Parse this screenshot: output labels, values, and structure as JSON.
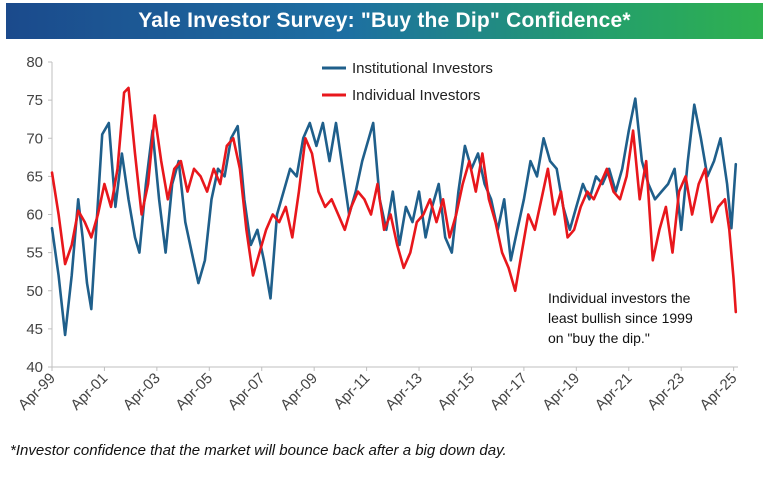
{
  "header": {
    "title": "Yale Investor Survey: \"Buy the Dip\" Confidence*"
  },
  "footnote": "*Investor confidence that the market will bounce back after a big down day.",
  "colors": {
    "institutional": "#1f5f8b",
    "individual": "#e8171c",
    "axis": "#bfbfbf"
  },
  "chart_data": {
    "type": "line",
    "title": "Yale Investor Survey: \"Buy the Dip\" Confidence*",
    "xlabel": "",
    "ylabel": "",
    "ylim": [
      40,
      80
    ],
    "yticks": [
      40,
      45,
      50,
      55,
      60,
      65,
      70,
      75,
      80
    ],
    "xlim": [
      "1999-04",
      "2025-06"
    ],
    "xticks": [
      "Apr-99",
      "Apr-01",
      "Apr-03",
      "Apr-05",
      "Apr-07",
      "Apr-09",
      "Apr-11",
      "Apr-13",
      "Apr-15",
      "Apr-17",
      "Apr-19",
      "Apr-21",
      "Apr-23",
      "Apr-25"
    ],
    "grid": false,
    "legend_position": "top-center",
    "series": [
      {
        "name": "Institutional Investors",
        "color": "#1f5f8b",
        "points": [
          [
            "1999-04",
            58.2
          ],
          [
            "1999-07",
            52
          ],
          [
            "1999-10",
            44.2
          ],
          [
            "2000-01",
            52
          ],
          [
            "2000-04",
            62
          ],
          [
            "2000-06",
            57
          ],
          [
            "2000-08",
            51
          ],
          [
            "2000-10",
            47.6
          ],
          [
            "2000-12",
            57
          ],
          [
            "2001-03",
            70.5
          ],
          [
            "2001-06",
            72
          ],
          [
            "2001-09",
            61
          ],
          [
            "2001-12",
            68
          ],
          [
            "2002-03",
            62
          ],
          [
            "2002-06",
            57
          ],
          [
            "2002-08",
            55
          ],
          [
            "2002-11",
            64
          ],
          [
            "2003-02",
            71
          ],
          [
            "2003-05",
            62
          ],
          [
            "2003-08",
            55
          ],
          [
            "2003-11",
            64
          ],
          [
            "2004-02",
            67
          ],
          [
            "2004-05",
            59
          ],
          [
            "2004-08",
            55
          ],
          [
            "2004-11",
            51
          ],
          [
            "2005-02",
            54
          ],
          [
            "2005-05",
            62
          ],
          [
            "2005-08",
            66
          ],
          [
            "2005-11",
            65
          ],
          [
            "2006-02",
            70
          ],
          [
            "2006-05",
            71.6
          ],
          [
            "2006-08",
            62
          ],
          [
            "2006-11",
            56
          ],
          [
            "2007-02",
            58
          ],
          [
            "2007-05",
            54
          ],
          [
            "2007-08",
            49
          ],
          [
            "2007-11",
            60
          ],
          [
            "2008-02",
            63
          ],
          [
            "2008-05",
            66
          ],
          [
            "2008-08",
            65
          ],
          [
            "2008-11",
            70
          ],
          [
            "2009-02",
            72
          ],
          [
            "2009-05",
            69
          ],
          [
            "2009-08",
            72
          ],
          [
            "2009-11",
            67
          ],
          [
            "2010-02",
            72
          ],
          [
            "2010-05",
            66
          ],
          [
            "2010-08",
            60
          ],
          [
            "2010-11",
            63
          ],
          [
            "2011-02",
            67
          ],
          [
            "2011-05",
            70
          ],
          [
            "2011-07",
            72
          ],
          [
            "2011-10",
            62
          ],
          [
            "2012-01",
            58
          ],
          [
            "2012-04",
            63
          ],
          [
            "2012-07",
            56
          ],
          [
            "2012-10",
            61
          ],
          [
            "2013-01",
            59
          ],
          [
            "2013-04",
            63
          ],
          [
            "2013-07",
            57
          ],
          [
            "2013-10",
            61
          ],
          [
            "2014-01",
            64
          ],
          [
            "2014-04",
            57
          ],
          [
            "2014-07",
            55
          ],
          [
            "2014-10",
            63
          ],
          [
            "2015-01",
            69
          ],
          [
            "2015-04",
            66
          ],
          [
            "2015-07",
            68
          ],
          [
            "2015-10",
            64
          ],
          [
            "2016-01",
            62
          ],
          [
            "2016-04",
            58
          ],
          [
            "2016-07",
            62
          ],
          [
            "2016-10",
            54
          ],
          [
            "2017-01",
            58
          ],
          [
            "2017-04",
            62
          ],
          [
            "2017-07",
            67
          ],
          [
            "2017-10",
            65
          ],
          [
            "2018-01",
            70
          ],
          [
            "2018-04",
            67
          ],
          [
            "2018-07",
            66
          ],
          [
            "2018-10",
            61
          ],
          [
            "2019-01",
            58
          ],
          [
            "2019-04",
            61
          ],
          [
            "2019-07",
            64
          ],
          [
            "2019-10",
            62
          ],
          [
            "2020-01",
            65
          ],
          [
            "2020-04",
            64
          ],
          [
            "2020-07",
            66
          ],
          [
            "2020-10",
            63
          ],
          [
            "2021-01",
            66
          ],
          [
            "2021-04",
            71
          ],
          [
            "2021-07",
            75.2
          ],
          [
            "2021-10",
            67
          ],
          [
            "2022-01",
            64
          ],
          [
            "2022-04",
            62
          ],
          [
            "2022-07",
            63
          ],
          [
            "2022-10",
            64
          ],
          [
            "2023-01",
            66
          ],
          [
            "2023-04",
            58
          ],
          [
            "2023-07",
            67
          ],
          [
            "2023-10",
            74.4
          ],
          [
            "2024-01",
            70
          ],
          [
            "2024-04",
            65
          ],
          [
            "2024-07",
            67
          ],
          [
            "2024-10",
            70
          ],
          [
            "2025-01",
            64
          ],
          [
            "2025-03",
            58.2
          ],
          [
            "2025-05",
            66.6
          ]
        ]
      },
      {
        "name": "Individual Investors",
        "color": "#e8171c",
        "points": [
          [
            "1999-04",
            65.5
          ],
          [
            "1999-07",
            60
          ],
          [
            "1999-10",
            53.5
          ],
          [
            "2000-01",
            56
          ],
          [
            "2000-04",
            60.5
          ],
          [
            "2000-07",
            59
          ],
          [
            "2000-10",
            57
          ],
          [
            "2001-01",
            60
          ],
          [
            "2001-04",
            64
          ],
          [
            "2001-07",
            61
          ],
          [
            "2001-10",
            66
          ],
          [
            "2002-01",
            76
          ],
          [
            "2002-03",
            76.6
          ],
          [
            "2002-06",
            68
          ],
          [
            "2002-09",
            60
          ],
          [
            "2002-12",
            64
          ],
          [
            "2003-03",
            73
          ],
          [
            "2003-06",
            67
          ],
          [
            "2003-09",
            62
          ],
          [
            "2003-12",
            66
          ],
          [
            "2004-03",
            67
          ],
          [
            "2004-06",
            63
          ],
          [
            "2004-09",
            66
          ],
          [
            "2004-12",
            65
          ],
          [
            "2005-03",
            63
          ],
          [
            "2005-06",
            66
          ],
          [
            "2005-09",
            64
          ],
          [
            "2005-12",
            69
          ],
          [
            "2006-03",
            70
          ],
          [
            "2006-06",
            66
          ],
          [
            "2006-09",
            58
          ],
          [
            "2006-12",
            52
          ],
          [
            "2007-03",
            55
          ],
          [
            "2007-06",
            58
          ],
          [
            "2007-09",
            60
          ],
          [
            "2007-12",
            59
          ],
          [
            "2008-03",
            61
          ],
          [
            "2008-06",
            57
          ],
          [
            "2008-09",
            63
          ],
          [
            "2008-12",
            70
          ],
          [
            "2009-03",
            68
          ],
          [
            "2009-06",
            63
          ],
          [
            "2009-09",
            61
          ],
          [
            "2009-12",
            62
          ],
          [
            "2010-03",
            60
          ],
          [
            "2010-06",
            58
          ],
          [
            "2010-09",
            61
          ],
          [
            "2010-12",
            63
          ],
          [
            "2011-03",
            62
          ],
          [
            "2011-06",
            60
          ],
          [
            "2011-09",
            64
          ],
          [
            "2011-12",
            58
          ],
          [
            "2012-03",
            60
          ],
          [
            "2012-06",
            56
          ],
          [
            "2012-09",
            53
          ],
          [
            "2012-12",
            55
          ],
          [
            "2013-03",
            59
          ],
          [
            "2013-06",
            60
          ],
          [
            "2013-09",
            62
          ],
          [
            "2013-12",
            59
          ],
          [
            "2014-03",
            62
          ],
          [
            "2014-06",
            57
          ],
          [
            "2014-09",
            60
          ],
          [
            "2014-12",
            64
          ],
          [
            "2015-03",
            67
          ],
          [
            "2015-06",
            63
          ],
          [
            "2015-09",
            68
          ],
          [
            "2015-12",
            62
          ],
          [
            "2016-03",
            59
          ],
          [
            "2016-06",
            55
          ],
          [
            "2016-09",
            53
          ],
          [
            "2016-12",
            50
          ],
          [
            "2017-03",
            55
          ],
          [
            "2017-06",
            60
          ],
          [
            "2017-09",
            58
          ],
          [
            "2017-12",
            62
          ],
          [
            "2018-03",
            66
          ],
          [
            "2018-06",
            60
          ],
          [
            "2018-09",
            63
          ],
          [
            "2018-12",
            57
          ],
          [
            "2019-03",
            58
          ],
          [
            "2019-06",
            61
          ],
          [
            "2019-09",
            63
          ],
          [
            "2019-12",
            62
          ],
          [
            "2020-03",
            64
          ],
          [
            "2020-06",
            66
          ],
          [
            "2020-09",
            63
          ],
          [
            "2020-12",
            62
          ],
          [
            "2021-03",
            65
          ],
          [
            "2021-06",
            71
          ],
          [
            "2021-09",
            62
          ],
          [
            "2021-12",
            67
          ],
          [
            "2022-03",
            54
          ],
          [
            "2022-06",
            58
          ],
          [
            "2022-09",
            61
          ],
          [
            "2022-12",
            55
          ],
          [
            "2023-03",
            63
          ],
          [
            "2023-06",
            65
          ],
          [
            "2023-09",
            60
          ],
          [
            "2023-12",
            64
          ],
          [
            "2024-03",
            66
          ],
          [
            "2024-06",
            59
          ],
          [
            "2024-09",
            61
          ],
          [
            "2024-12",
            62
          ],
          [
            "2025-02",
            58
          ],
          [
            "2025-04",
            51.5
          ],
          [
            "2025-05",
            47.2
          ]
        ]
      }
    ],
    "annotations": [
      {
        "lines": [
          "Individual investors the",
          "least bullish since 1999",
          "on \"buy the dip.\""
        ]
      }
    ]
  }
}
